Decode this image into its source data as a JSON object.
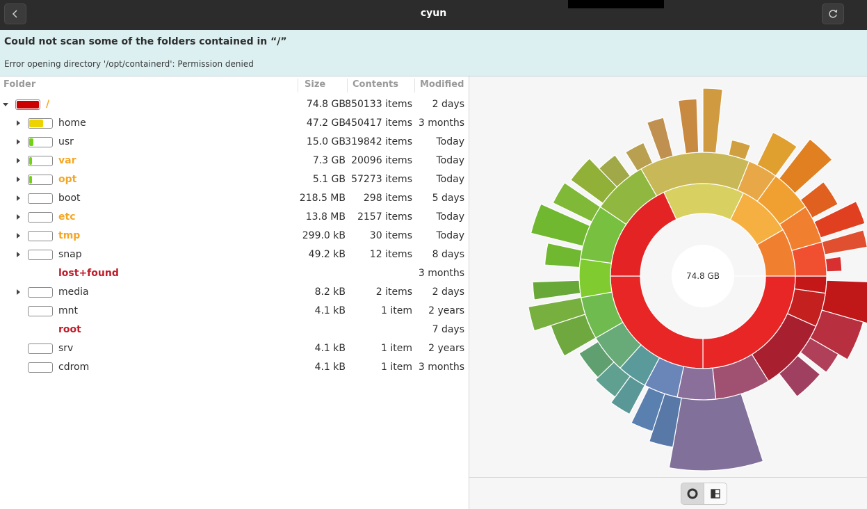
{
  "window": {
    "title": "cyun"
  },
  "infobar": {
    "title": "Could not scan some of the folders contained in “/”",
    "message": "Error opening directory '/opt/containerd': Permission denied"
  },
  "columns": {
    "folder": "Folder",
    "size": "Size",
    "contents": "Contents",
    "modified": "Modified"
  },
  "rows": [
    {
      "name": "/",
      "size": "74.8 GB",
      "contents": "850133 items",
      "modified": "2 days",
      "fill": 1.0,
      "color": "#cc0000",
      "nameColor": "#f5a623",
      "bold": true,
      "expander": "down",
      "bar": true,
      "indent": 0
    },
    {
      "name": "home",
      "size": "47.2 GB",
      "contents": "450417 items",
      "modified": "3 months",
      "fill": 0.631,
      "color": "#edd400",
      "nameColor": "#2e2e2e",
      "bold": false,
      "expander": "right",
      "bar": true,
      "indent": 1
    },
    {
      "name": "usr",
      "size": "15.0 GB",
      "contents": "319842 items",
      "modified": "Today",
      "fill": 0.2,
      "color": "#73d216",
      "nameColor": "#2e2e2e",
      "bold": false,
      "expander": "right",
      "bar": true,
      "indent": 1
    },
    {
      "name": "var",
      "size": "7.3 GB",
      "contents": "20096 items",
      "modified": "Today",
      "fill": 0.098,
      "color": "#73d216",
      "nameColor": "#f5a623",
      "bold": true,
      "expander": "right",
      "bar": true,
      "indent": 1
    },
    {
      "name": "opt",
      "size": "5.1 GB",
      "contents": "57273 items",
      "modified": "Today",
      "fill": 0.068,
      "color": "#73d216",
      "nameColor": "#f5a623",
      "bold": true,
      "expander": "right",
      "bar": true,
      "indent": 1
    },
    {
      "name": "boot",
      "size": "218.5 MB",
      "contents": "298 items",
      "modified": "5 days",
      "fill": 0,
      "color": "#73d216",
      "nameColor": "#2e2e2e",
      "bold": false,
      "expander": "right",
      "bar": true,
      "indent": 1
    },
    {
      "name": "etc",
      "size": "13.8 MB",
      "contents": "2157 items",
      "modified": "Today",
      "fill": 0,
      "color": "#73d216",
      "nameColor": "#f5a623",
      "bold": true,
      "expander": "right",
      "bar": true,
      "indent": 1
    },
    {
      "name": "tmp",
      "size": "299.0 kB",
      "contents": "30 items",
      "modified": "Today",
      "fill": 0,
      "color": "#73d216",
      "nameColor": "#f5a623",
      "bold": true,
      "expander": "right",
      "bar": true,
      "indent": 1
    },
    {
      "name": "snap",
      "size": "49.2 kB",
      "contents": "12 items",
      "modified": "8 days",
      "fill": 0,
      "color": "#73d216",
      "nameColor": "#2e2e2e",
      "bold": false,
      "expander": "right",
      "bar": true,
      "indent": 1
    },
    {
      "name": "lost+found",
      "size": "",
      "contents": "",
      "modified": "3 months",
      "fill": 0,
      "color": "#73d216",
      "nameColor": "#c01c28",
      "bold": true,
      "expander": "none",
      "bar": false,
      "indent": 1
    },
    {
      "name": "media",
      "size": "8.2 kB",
      "contents": "2 items",
      "modified": "2 days",
      "fill": 0,
      "color": "#73d216",
      "nameColor": "#2e2e2e",
      "bold": false,
      "expander": "right",
      "bar": true,
      "indent": 1
    },
    {
      "name": "mnt",
      "size": "4.1 kB",
      "contents": "1 item",
      "modified": "2 years",
      "fill": 0,
      "color": "#73d216",
      "nameColor": "#2e2e2e",
      "bold": false,
      "expander": "none",
      "bar": true,
      "indent": 1
    },
    {
      "name": "root",
      "size": "",
      "contents": "",
      "modified": "7 days",
      "fill": 0,
      "color": "#73d216",
      "nameColor": "#c01c28",
      "bold": true,
      "expander": "none",
      "bar": false,
      "indent": 1
    },
    {
      "name": "srv",
      "size": "4.1 kB",
      "contents": "1 item",
      "modified": "2 years",
      "fill": 0,
      "color": "#73d216",
      "nameColor": "#2e2e2e",
      "bold": false,
      "expander": "none",
      "bar": true,
      "indent": 1
    },
    {
      "name": "cdrom",
      "size": "4.1 kB",
      "contents": "1 item",
      "modified": "3 months",
      "fill": 0,
      "color": "#73d216",
      "nameColor": "#2e2e2e",
      "bold": false,
      "expander": "none",
      "bar": true,
      "indent": 1
    }
  ],
  "chart": {
    "center_label": "74.8 GB",
    "segments": [
      {
        "start": -90,
        "end": 0,
        "color": "#f03030"
      },
      {
        "start": 0,
        "end": 270,
        "color": "#d81e1e"
      },
      {
        "start": -35,
        "end": 0,
        "color": "#ef2a2a"
      }
    ]
  },
  "icons": {
    "back": "chevron-left-icon",
    "reload": "reload-icon",
    "ring_view": "ring-chart-icon",
    "tree_view": "treemap-icon"
  }
}
